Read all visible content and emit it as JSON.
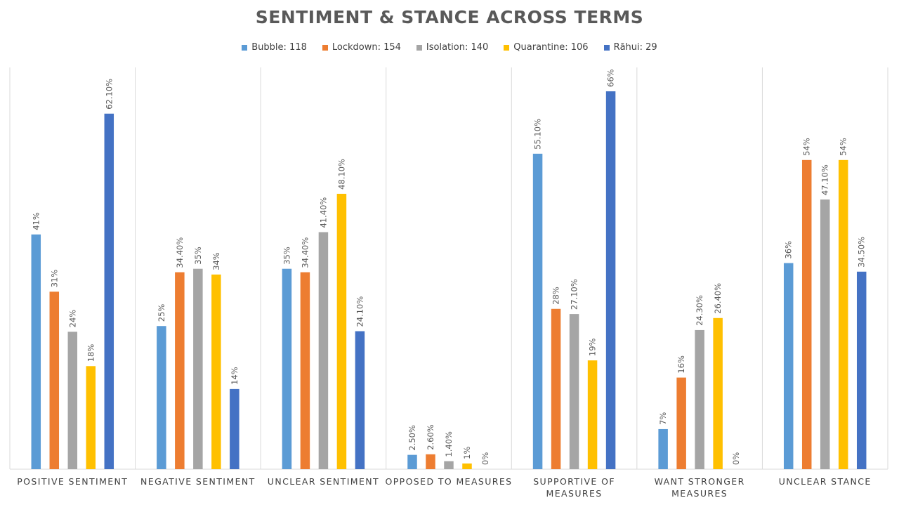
{
  "chart_data": {
    "type": "bar",
    "title": "SENTIMENT & STANCE ACROSS TERMS",
    "categories": [
      [
        "POSITIVE SENTIMENT"
      ],
      [
        "NEGATIVE SENTIMENT"
      ],
      [
        "UNCLEAR SENTIMENT"
      ],
      [
        "OPPOSED TO MEASURES"
      ],
      [
        "SUPPORTIVE OF",
        "MEASURES"
      ],
      [
        "WANT STRONGER",
        "MEASURES"
      ],
      [
        "UNCLEAR STANCE"
      ]
    ],
    "series": [
      {
        "name": "Bubble: 118",
        "color": "#5b9bd5",
        "values": [
          41,
          25,
          35,
          2.5,
          55.1,
          7,
          36
        ],
        "labels": [
          "41%",
          "25%",
          "35%",
          "2.50%",
          "55.10%",
          "7%",
          "36%"
        ]
      },
      {
        "name": "Lockdown: 154",
        "color": "#ed7d31",
        "values": [
          31,
          34.4,
          34.4,
          2.6,
          28,
          16,
          54
        ],
        "labels": [
          "31%",
          "34.40%",
          "34.40%",
          "2.60%",
          "28%",
          "16%",
          "54%"
        ]
      },
      {
        "name": "Isolation: 140",
        "color": "#a5a5a5",
        "values": [
          24,
          35,
          41.4,
          1.4,
          27.1,
          24.3,
          47.1
        ],
        "labels": [
          "24%",
          "35%",
          "41.40%",
          "1.40%",
          "27.10%",
          "24.30%",
          "47.10%"
        ]
      },
      {
        "name": "Quarantine: 106",
        "color": "#ffc000",
        "values": [
          18,
          34,
          48.1,
          1,
          19,
          26.4,
          54
        ],
        "labels": [
          "18%",
          "34%",
          "48.10%",
          "1%",
          "19%",
          "26.40%",
          "54%"
        ]
      },
      {
        "name": "Rāhui: 29",
        "color": "#4472c4",
        "values": [
          62.1,
          14,
          24.1,
          0,
          66,
          0,
          34.5
        ],
        "labels": [
          "62.10%",
          "14%",
          "24.10%",
          "0%",
          "66%",
          "0%",
          "34.50%"
        ]
      }
    ],
    "ylim": [
      0,
      66
    ],
    "legend_position": "top",
    "grid": "vertical category separators"
  }
}
